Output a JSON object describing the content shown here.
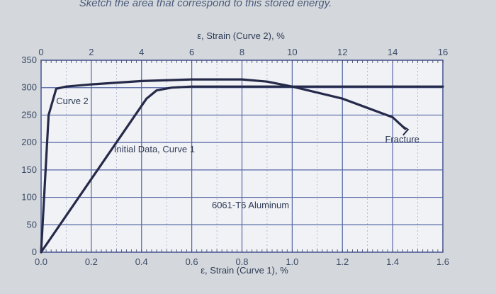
{
  "header_text": "Sketch the area that correspond to this stored energy.",
  "chart_data": {
    "type": "line",
    "title": "",
    "xlabel_top": "ε, Strain (Curve 2), %",
    "xlabel_bottom": "ε, Strain (Curve 1), %",
    "ylabel": "",
    "x_bottom_lim": [
      0,
      1.6
    ],
    "x_top_lim": [
      0,
      16
    ],
    "ylim": [
      0,
      350
    ],
    "grid": true,
    "y_ticks": [
      "0",
      "50",
      "100",
      "150",
      "200",
      "250",
      "300",
      "350"
    ],
    "x_bottom_ticks": [
      "0.0",
      "0.2",
      "0.4",
      "0.6",
      "0.8",
      "1.0",
      "1.2",
      "1.4",
      "1.6"
    ],
    "x_top_ticks": [
      "0",
      "2",
      "4",
      "6",
      "8",
      "10",
      "12",
      "14",
      "16"
    ],
    "series": [
      {
        "name": "Initial Data, Curve 1",
        "axis": "bottom",
        "color": "#262a4a",
        "x": [
          0.0,
          0.42,
          0.46,
          0.52,
          0.6,
          0.8,
          1.0,
          1.6
        ],
        "y": [
          0,
          280,
          295,
          300,
          302,
          302,
          302,
          302
        ]
      },
      {
        "name": "Curve 2",
        "axis": "top",
        "color": "#262a4a",
        "x": [
          0.0,
          0.3,
          0.6,
          1.0,
          2.0,
          4.0,
          6.0,
          8.0,
          9.0,
          10.0,
          12.0,
          14.0,
          14.5
        ],
        "y": [
          0,
          250,
          298,
          302,
          306,
          312,
          315,
          315,
          311,
          302,
          280,
          246,
          225
        ]
      }
    ],
    "annotations": [
      {
        "text": "Curve 2",
        "x": 0.6,
        "y": 270,
        "axis": "top"
      },
      {
        "text": "Initial Data, Curve 1",
        "x": 0.29,
        "y": 182,
        "axis": "bottom"
      },
      {
        "text": "Fracture",
        "x": 1.37,
        "y": 200,
        "axis": "bottom"
      },
      {
        "text": "6061-T6 Aluminum",
        "x": 0.68,
        "y": 80,
        "axis": "bottom"
      }
    ]
  }
}
